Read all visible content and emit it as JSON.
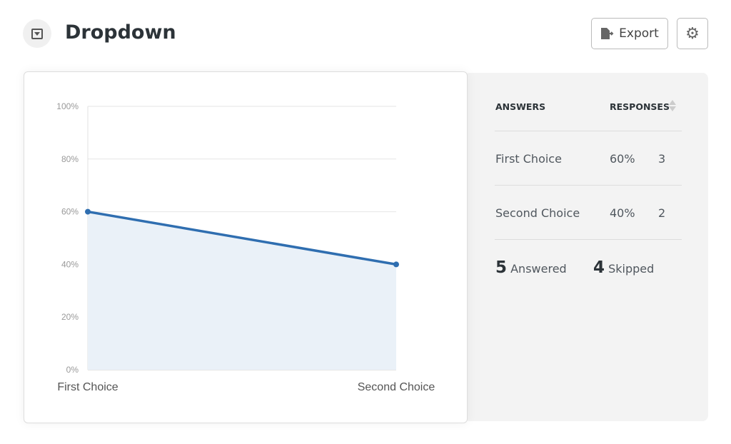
{
  "header": {
    "title": "Dropdown",
    "icon": "dropdown-icon",
    "export_label": "Export",
    "export_icon": "file-export-icon",
    "settings_icon": "gear-icon"
  },
  "table": {
    "headers": [
      "ANSWERS",
      "RESPONSES"
    ],
    "rows": [
      {
        "answer": "First Choice",
        "percent": "60%",
        "count": "3"
      },
      {
        "answer": "Second Choice",
        "percent": "40%",
        "count": "2"
      }
    ],
    "answered_count": "5",
    "answered_label": "Answered",
    "skipped_count": "4",
    "skipped_label": "Skipped"
  },
  "chart_data": {
    "type": "area",
    "categories": [
      "First Choice",
      "Second Choice"
    ],
    "values": [
      60,
      40
    ],
    "ylim": [
      0,
      100
    ],
    "yticks": [
      "0%",
      "20%",
      "40%",
      "60%",
      "80%",
      "100%"
    ],
    "grid": true,
    "colors": {
      "line": "#2f6eb0",
      "fill": "#eaf1f8"
    }
  }
}
